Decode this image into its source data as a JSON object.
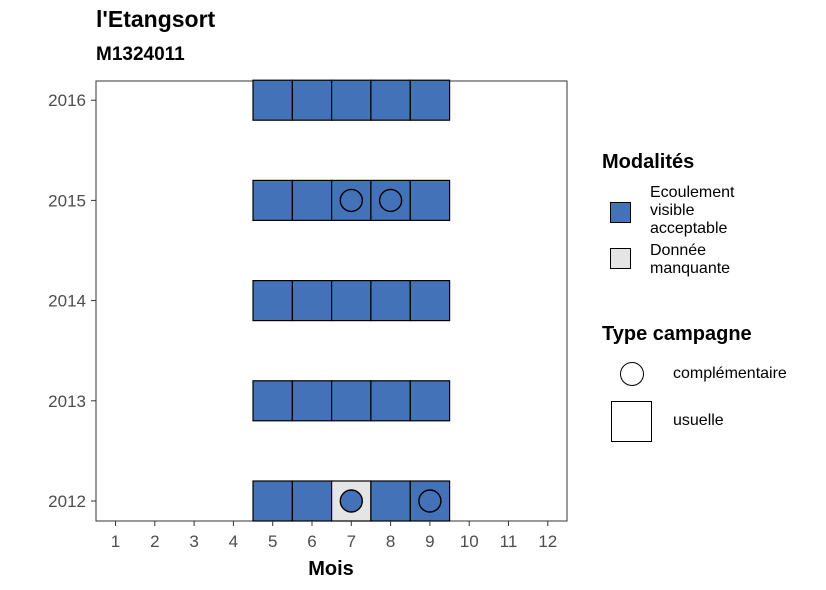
{
  "title": "l'Etangsort",
  "subtitle": "M1324011",
  "chart_data": {
    "type": "heatmap",
    "xlabel": "Mois",
    "ylabel": "",
    "x_ticks": [
      "1",
      "2",
      "3",
      "4",
      "5",
      "6",
      "7",
      "8",
      "9",
      "10",
      "11",
      "12"
    ],
    "y_ticks": [
      "2012",
      "2013",
      "2014",
      "2015",
      "2016"
    ],
    "xlim": [
      0.5,
      12.5
    ],
    "ylim": [
      2011.8,
      2016.2
    ],
    "grid": false,
    "legend_placement": "right",
    "cells": [
      {
        "year": 2016,
        "month": 5,
        "modalite": "ecoulement"
      },
      {
        "year": 2016,
        "month": 6,
        "modalite": "ecoulement"
      },
      {
        "year": 2016,
        "month": 7,
        "modalite": "ecoulement"
      },
      {
        "year": 2016,
        "month": 8,
        "modalite": "ecoulement"
      },
      {
        "year": 2016,
        "month": 9,
        "modalite": "ecoulement"
      },
      {
        "year": 2015,
        "month": 5,
        "modalite": "ecoulement"
      },
      {
        "year": 2015,
        "month": 6,
        "modalite": "ecoulement"
      },
      {
        "year": 2015,
        "month": 7,
        "modalite": "ecoulement",
        "campagne": "complementaire"
      },
      {
        "year": 2015,
        "month": 8,
        "modalite": "ecoulement",
        "campagne": "complementaire"
      },
      {
        "year": 2015,
        "month": 9,
        "modalite": "ecoulement"
      },
      {
        "year": 2014,
        "month": 5,
        "modalite": "ecoulement"
      },
      {
        "year": 2014,
        "month": 6,
        "modalite": "ecoulement"
      },
      {
        "year": 2014,
        "month": 7,
        "modalite": "ecoulement"
      },
      {
        "year": 2014,
        "month": 8,
        "modalite": "ecoulement"
      },
      {
        "year": 2014,
        "month": 9,
        "modalite": "ecoulement"
      },
      {
        "year": 2013,
        "month": 5,
        "modalite": "ecoulement"
      },
      {
        "year": 2013,
        "month": 6,
        "modalite": "ecoulement"
      },
      {
        "year": 2013,
        "month": 7,
        "modalite": "ecoulement"
      },
      {
        "year": 2013,
        "month": 8,
        "modalite": "ecoulement"
      },
      {
        "year": 2013,
        "month": 9,
        "modalite": "ecoulement"
      },
      {
        "year": 2012,
        "month": 5,
        "modalite": "ecoulement"
      },
      {
        "year": 2012,
        "month": 6,
        "modalite": "ecoulement"
      },
      {
        "year": 2012,
        "month": 7,
        "modalite": "manquante",
        "campagne": "complementaire",
        "marker_fill": "ecoulement"
      },
      {
        "year": 2012,
        "month": 8,
        "modalite": "ecoulement"
      },
      {
        "year": 2012,
        "month": 9,
        "modalite": "ecoulement",
        "campagne": "complementaire"
      }
    ]
  },
  "colors": {
    "ecoulement": "#4472b8",
    "manquante": "#e5e5e5"
  },
  "legend": {
    "modalites_title": "Modalités",
    "modalites": [
      {
        "key": "ecoulement",
        "label_lines": [
          "Ecoulement",
          "visible",
          "acceptable"
        ]
      },
      {
        "key": "manquante",
        "label_lines": [
          "Donnée",
          "manquante"
        ]
      }
    ],
    "type_title": "Type campagne",
    "types": [
      {
        "key": "complementaire",
        "label": "complémentaire",
        "icon": "circle-icon"
      },
      {
        "key": "usuelle",
        "label": "usuelle",
        "icon": "square-icon"
      }
    ]
  }
}
